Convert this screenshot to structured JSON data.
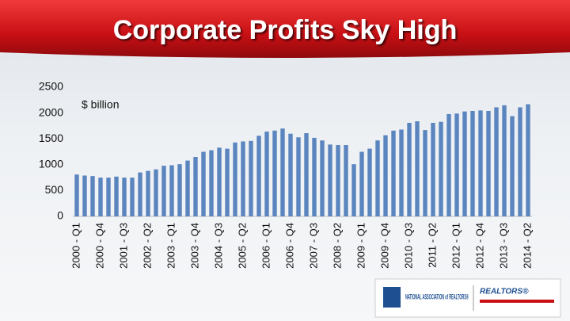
{
  "chart_data": {
    "type": "bar",
    "title": "Corporate Profits Sky High",
    "annotation": "$ billion",
    "logo_left": "NATIONAL ASSOCIATION of REALTORS®",
    "logo_right": "REALTORS®",
    "categories": [
      "2000 - Q1",
      null,
      null,
      "2000 - Q4",
      null,
      null,
      "2001 - Q3",
      null,
      null,
      "2002 - Q2",
      null,
      null,
      "2003 - Q1",
      null,
      null,
      "2003 - Q4",
      null,
      null,
      "2004 - Q3",
      null,
      null,
      "2005 - Q2",
      null,
      null,
      "2006 - Q1",
      null,
      null,
      "2006 - Q4",
      null,
      null,
      "2007 - Q3",
      null,
      null,
      "2008 - Q2",
      null,
      null,
      "2009 - Q1",
      null,
      null,
      "2009 - Q4",
      null,
      null,
      "2010 - Q3",
      null,
      null,
      "2011 - Q2",
      null,
      null,
      "2012 - Q1",
      null,
      null,
      "2012 - Q4",
      null,
      null,
      "2013 - Q3",
      null,
      null,
      "2014 - Q2"
    ],
    "values": [
      810,
      790,
      780,
      750,
      750,
      770,
      750,
      750,
      850,
      880,
      910,
      980,
      990,
      1010,
      1080,
      1150,
      1250,
      1280,
      1330,
      1310,
      1430,
      1450,
      1460,
      1560,
      1640,
      1660,
      1700,
      1600,
      1530,
      1610,
      1520,
      1470,
      1390,
      1380,
      1380,
      1010,
      1250,
      1310,
      1470,
      1570,
      1660,
      1680,
      1810,
      1840,
      1670,
      1810,
      1830,
      1980,
      1990,
      2030,
      2040,
      2050,
      2040,
      2110,
      2150,
      1940,
      2110,
      2170
    ],
    "color": "#5b85bf",
    "ylim": [
      0,
      2500
    ],
    "yticks": [
      0,
      500,
      1000,
      1500,
      2000,
      2500
    ],
    "grid": false
  }
}
